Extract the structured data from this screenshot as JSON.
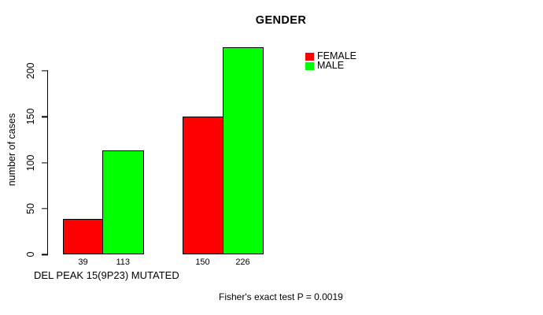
{
  "chart_data": {
    "type": "bar",
    "title": "GENDER",
    "ylabel": "number of cases",
    "xlabel": "DEL PEAK 15(9P23) MUTATED",
    "ylim": [
      0,
      230
    ],
    "yticks": [
      0,
      50,
      100,
      150,
      200
    ],
    "grid": false,
    "legend_position": "top-right",
    "categories": [
      "DEL PEAK 15(9P23) MUTATED",
      ""
    ],
    "series": [
      {
        "name": "FEMALE",
        "color": "#ff0000",
        "values": [
          39,
          150
        ]
      },
      {
        "name": "MALE",
        "color": "#00ff00",
        "values": [
          113,
          226
        ]
      }
    ],
    "bar_value_labels": [
      "39",
      "113",
      "150",
      "226"
    ],
    "annotation": "Fisher's exact test P = 0.0019"
  }
}
